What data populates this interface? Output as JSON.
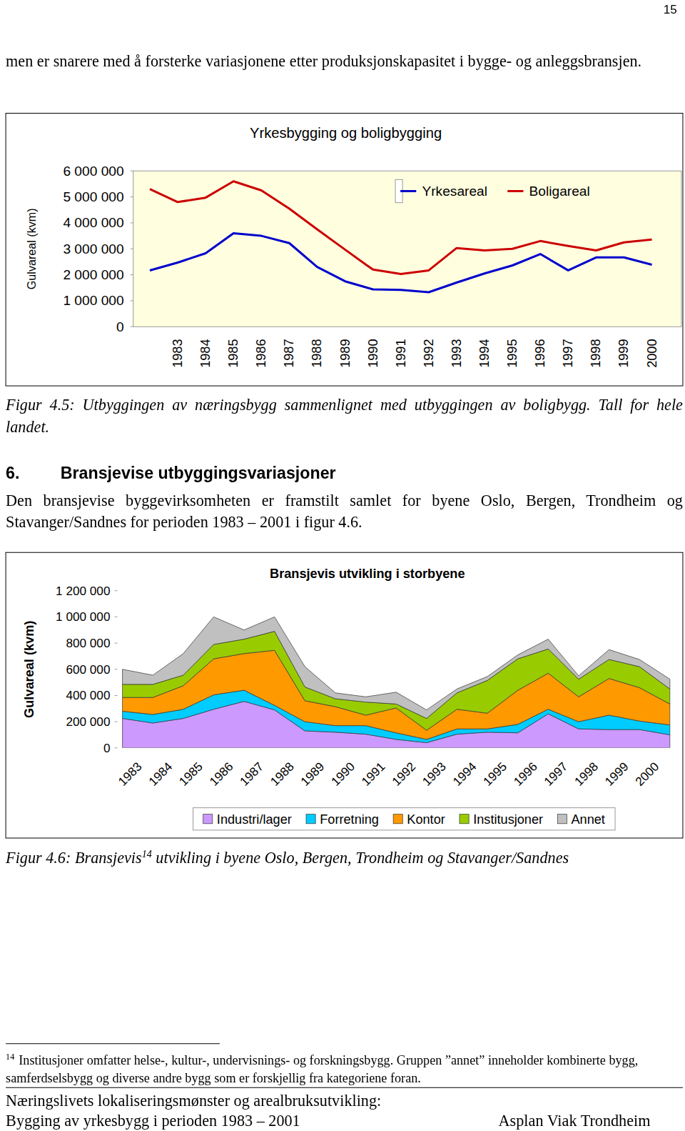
{
  "page_number": "15",
  "paragraphs": [
    "men er snarere med å forsterke variasjonene etter produksjonskapasitet i bygge- og anleggsbransjen.",
    "Den bransjevise byggevirksomheten er framstilt samlet for byene Oslo, Bergen, Trondheim og Stavanger/Sandnes for perioden 1983 – 2001 i figur 4.6."
  ],
  "captions": [
    {
      "text": "Figur 4.5: Utbyggingen av næringsbygg sammenlignet med utbyggingen av boligbygg. Tall for hele landet."
    },
    {
      "text": "Figur 4.6: Bransjevis",
      "sup": "14",
      "after": " utvikling i byene Oslo, Bergen, Trondheim og Stavanger/Sandnes"
    }
  ],
  "heading": {
    "number": "6.",
    "text": "Bransjevise utbyggingsvariasjoner"
  },
  "footnote": {
    "number": "14",
    "text": "Institusjoner omfatter helse-, kultur-, undervisnings- og forskningsbygg. Gruppen ”annet” inneholder kombinerte bygg, samferdselsbygg og diverse andre bygg som er forskjellig fra kategoriene foran."
  },
  "footer": {
    "left": [
      "Næringslivets lokaliseringsmønster og arealbruksutvikling:",
      "Bygging av yrkesbygg i perioden 1983 – 2001"
    ],
    "right": "Asplan Viak Trondheim"
  },
  "chart_data": [
    {
      "type": "line",
      "title": "Yrkesbygging og boligbygging",
      "y_label": "Gulvareal (kvm)",
      "categories": [
        null,
        "1983",
        "1984",
        "1985",
        "1986",
        "1987",
        "1988",
        "1989",
        "1990",
        "1991",
        "1992",
        "1993",
        "1994",
        "1995",
        "1996",
        "1997",
        "1998",
        "1999",
        "2000"
      ],
      "series": [
        {
          "name": "Yrkesareal",
          "color": "#0000cc",
          "values": [
            2170000,
            2470000,
            2830000,
            3600000,
            3500000,
            3220000,
            2300000,
            1750000,
            1440000,
            1420000,
            1330000,
            1700000,
            2050000,
            2360000,
            2800000,
            2170000,
            2670000,
            2670000,
            2390000
          ]
        },
        {
          "name": "Boligareal",
          "color": "#cc0000",
          "values": [
            5300000,
            4800000,
            4970000,
            5600000,
            5250000,
            4550000,
            3750000,
            2970000,
            2200000,
            2030000,
            2170000,
            3030000,
            2940000,
            3000000,
            3300000,
            3110000,
            2940000,
            3250000,
            3360000
          ]
        }
      ],
      "ylim": [
        0,
        6000000
      ],
      "yticks": [
        0,
        {
          "value": 1000000,
          "label": "1 000 000"
        },
        {
          "value": 2000000,
          "label": "2 000 000"
        },
        {
          "value": 3000000,
          "label": "3 000 000"
        },
        {
          "value": 4000000,
          "label": "4 000 000"
        },
        {
          "value": 5000000,
          "label": "5 000 000"
        },
        {
          "value": 6000000,
          "label": "6 000 000"
        }
      ],
      "grid": false,
      "legend": "top-right"
    },
    {
      "type": "area",
      "stacked": true,
      "title": "Bransjevis utvikling i storbyene",
      "y_label": "Gulvareal (kvm)",
      "categories": [
        "1983",
        "1984",
        "1985",
        "1986",
        "1987",
        "1988",
        "1989",
        "1990",
        "1991",
        "1992",
        "1993",
        "1994",
        "1995",
        "1996",
        "1997",
        "1998",
        "1999",
        "2000",
        null
      ],
      "series": [
        {
          "name": "Industri/lager",
          "color": "#cc99ff",
          "values": [
            225000,
            190000,
            225000,
            295000,
            355000,
            290000,
            130000,
            120000,
            105000,
            65000,
            40000,
            105000,
            120000,
            115000,
            260000,
            145000,
            140000,
            140000,
            100000
          ]
        },
        {
          "name": "Forretning",
          "color": "#00ccff",
          "values": [
            55000,
            65000,
            70000,
            110000,
            85000,
            35000,
            70000,
            50000,
            65000,
            50000,
            25000,
            40000,
            25000,
            65000,
            35000,
            55000,
            110000,
            65000,
            75000
          ]
        },
        {
          "name": "Kontor",
          "color": "#ff9900",
          "values": [
            105000,
            130000,
            180000,
            275000,
            280000,
            420000,
            160000,
            145000,
            80000,
            190000,
            70000,
            150000,
            120000,
            260000,
            275000,
            190000,
            280000,
            255000,
            160000
          ]
        },
        {
          "name": "Institusjoner",
          "color": "#99cc00",
          "values": [
            100000,
            100000,
            80000,
            110000,
            110000,
            145000,
            105000,
            60000,
            100000,
            30000,
            90000,
            125000,
            250000,
            240000,
            185000,
            135000,
            145000,
            160000,
            115000
          ]
        },
        {
          "name": "Annet",
          "color": "#c0c0c0",
          "values": [
            115000,
            70000,
            165000,
            210000,
            70000,
            110000,
            155000,
            45000,
            40000,
            90000,
            65000,
            30000,
            30000,
            30000,
            75000,
            25000,
            75000,
            55000,
            75000
          ]
        }
      ],
      "ylim": [
        0,
        1200000
      ],
      "yticks": [
        0,
        {
          "value": 200000,
          "label": "200 000"
        },
        {
          "value": 400000,
          "label": "400 000"
        },
        {
          "value": 600000,
          "label": "600 000"
        },
        {
          "value": 800000,
          "label": "800 000"
        },
        {
          "value": 1000000,
          "label": "1 000 000"
        },
        {
          "value": 1200000,
          "label": "1 200 000"
        }
      ],
      "grid": false,
      "legend": "bottom"
    }
  ]
}
